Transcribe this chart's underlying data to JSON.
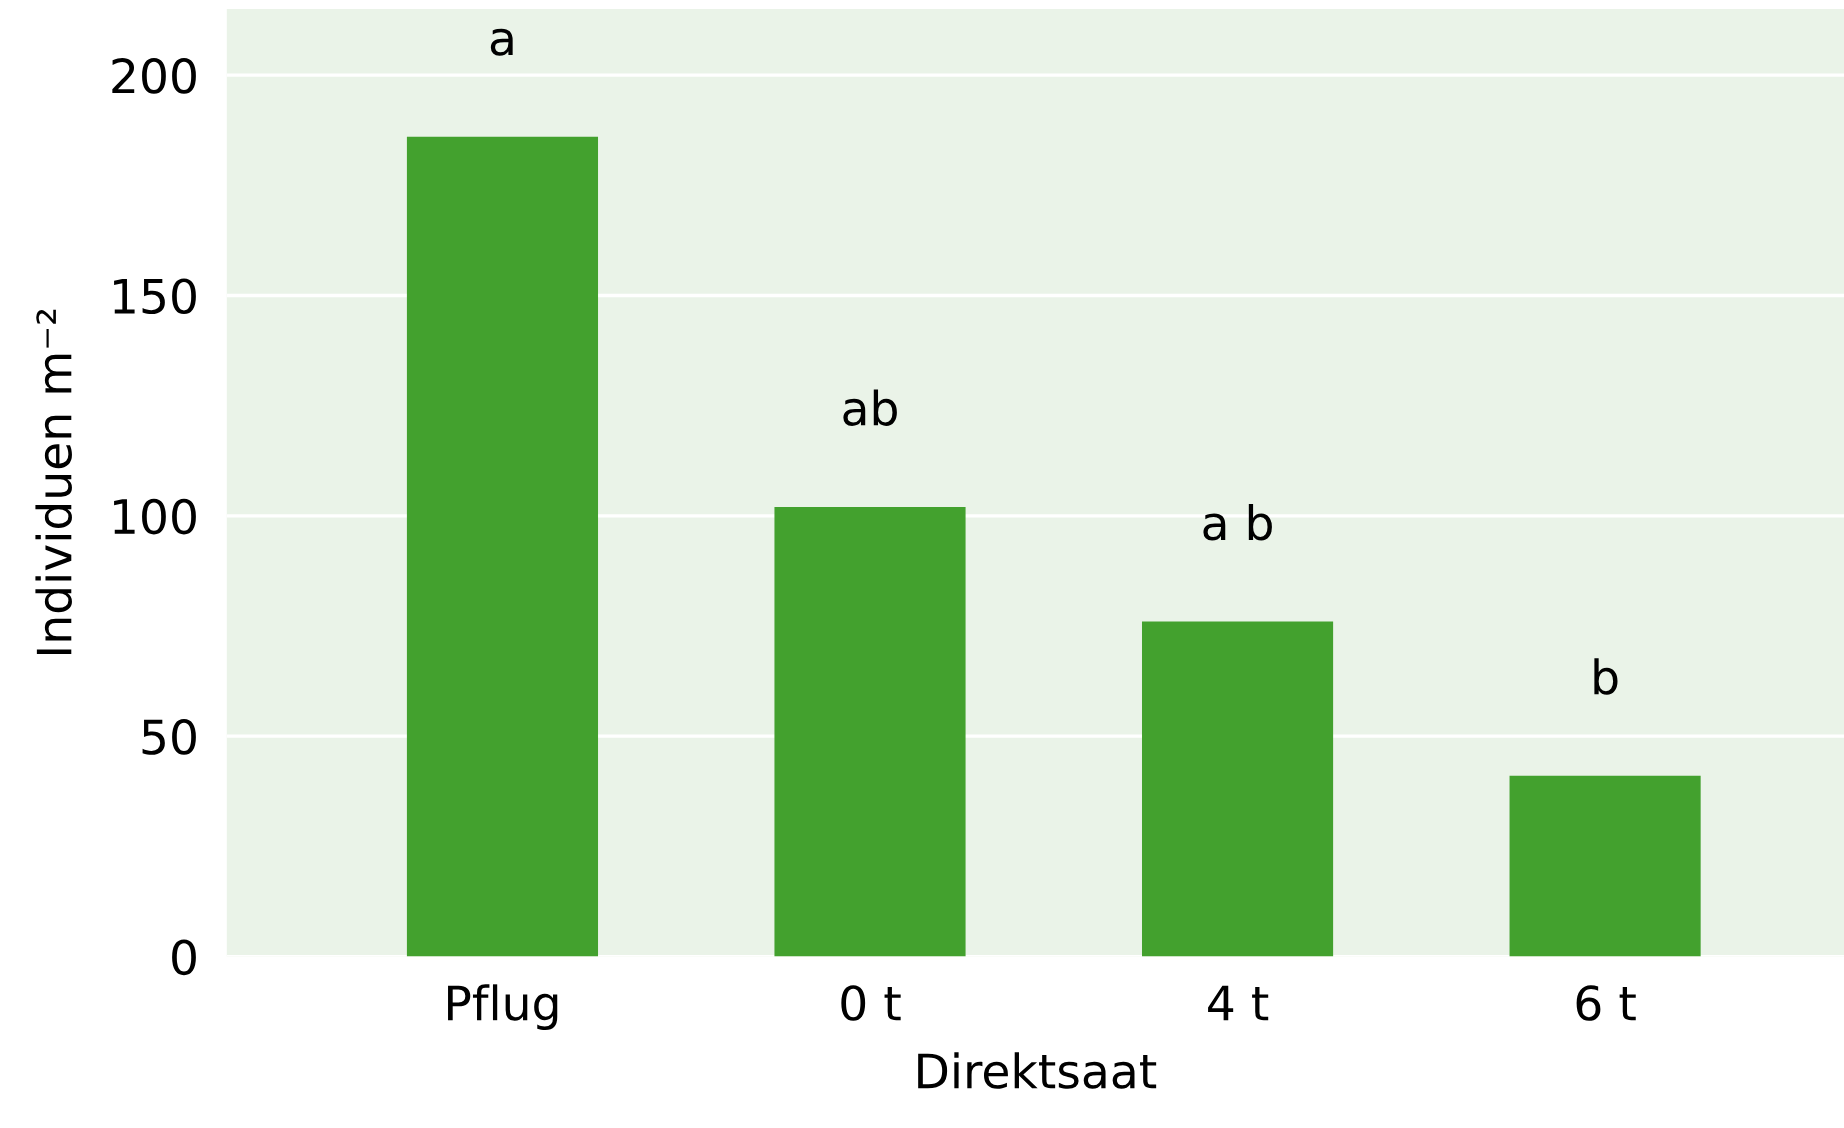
{
  "chart_data": {
    "type": "bar",
    "categories": [
      "Pflug",
      "0 t",
      "4 t",
      "6 t"
    ],
    "values": [
      186,
      102,
      76,
      41
    ],
    "color": "#43a12e",
    "xlabel": "Direktsaat",
    "ylabel": "Individuen m⁻²",
    "ylim": [
      0,
      215
    ],
    "yticks": [
      0,
      50,
      100,
      150,
      200
    ],
    "grid": "y",
    "annotations": [
      "a",
      "ab",
      "a b",
      "b"
    ]
  }
}
